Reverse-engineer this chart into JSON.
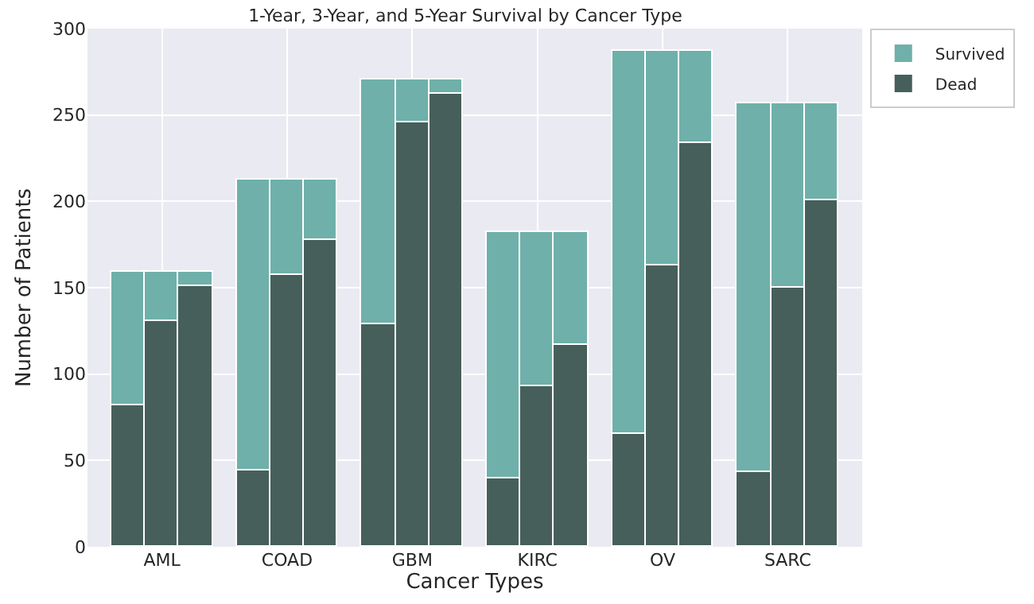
{
  "chart_data": {
    "type": "bar",
    "title": "1-Year, 3-Year, and 5-Year Survival by Cancer Type",
    "xlabel": "Cancer Types",
    "ylabel": "Number of Patients",
    "categories": [
      null,
      "AML",
      null,
      null,
      "COAD",
      null,
      null,
      "GBM",
      null,
      null,
      "KIRC",
      null,
      null,
      "OV",
      null,
      null,
      "SARC",
      null
    ],
    "stacked": true,
    "series": [
      {
        "name": "Dead",
        "color": "#475f5a",
        "values": [
          82,
          131,
          151,
          44,
          157,
          178,
          129,
          246,
          262,
          40,
          93,
          117,
          65,
          163,
          234,
          43,
          150,
          201
        ]
      },
      {
        "name": "Survived",
        "color": "#6fb0aa",
        "values": [
          77,
          28,
          8,
          169,
          56,
          35,
          142,
          25,
          9,
          142,
          89,
          65,
          222,
          124,
          53,
          214,
          107,
          56
        ]
      }
    ],
    "ylim": [
      0,
      300
    ],
    "yticks": [
      0,
      50,
      100,
      150,
      200,
      250,
      300
    ],
    "grid": true,
    "legend": "top right"
  }
}
